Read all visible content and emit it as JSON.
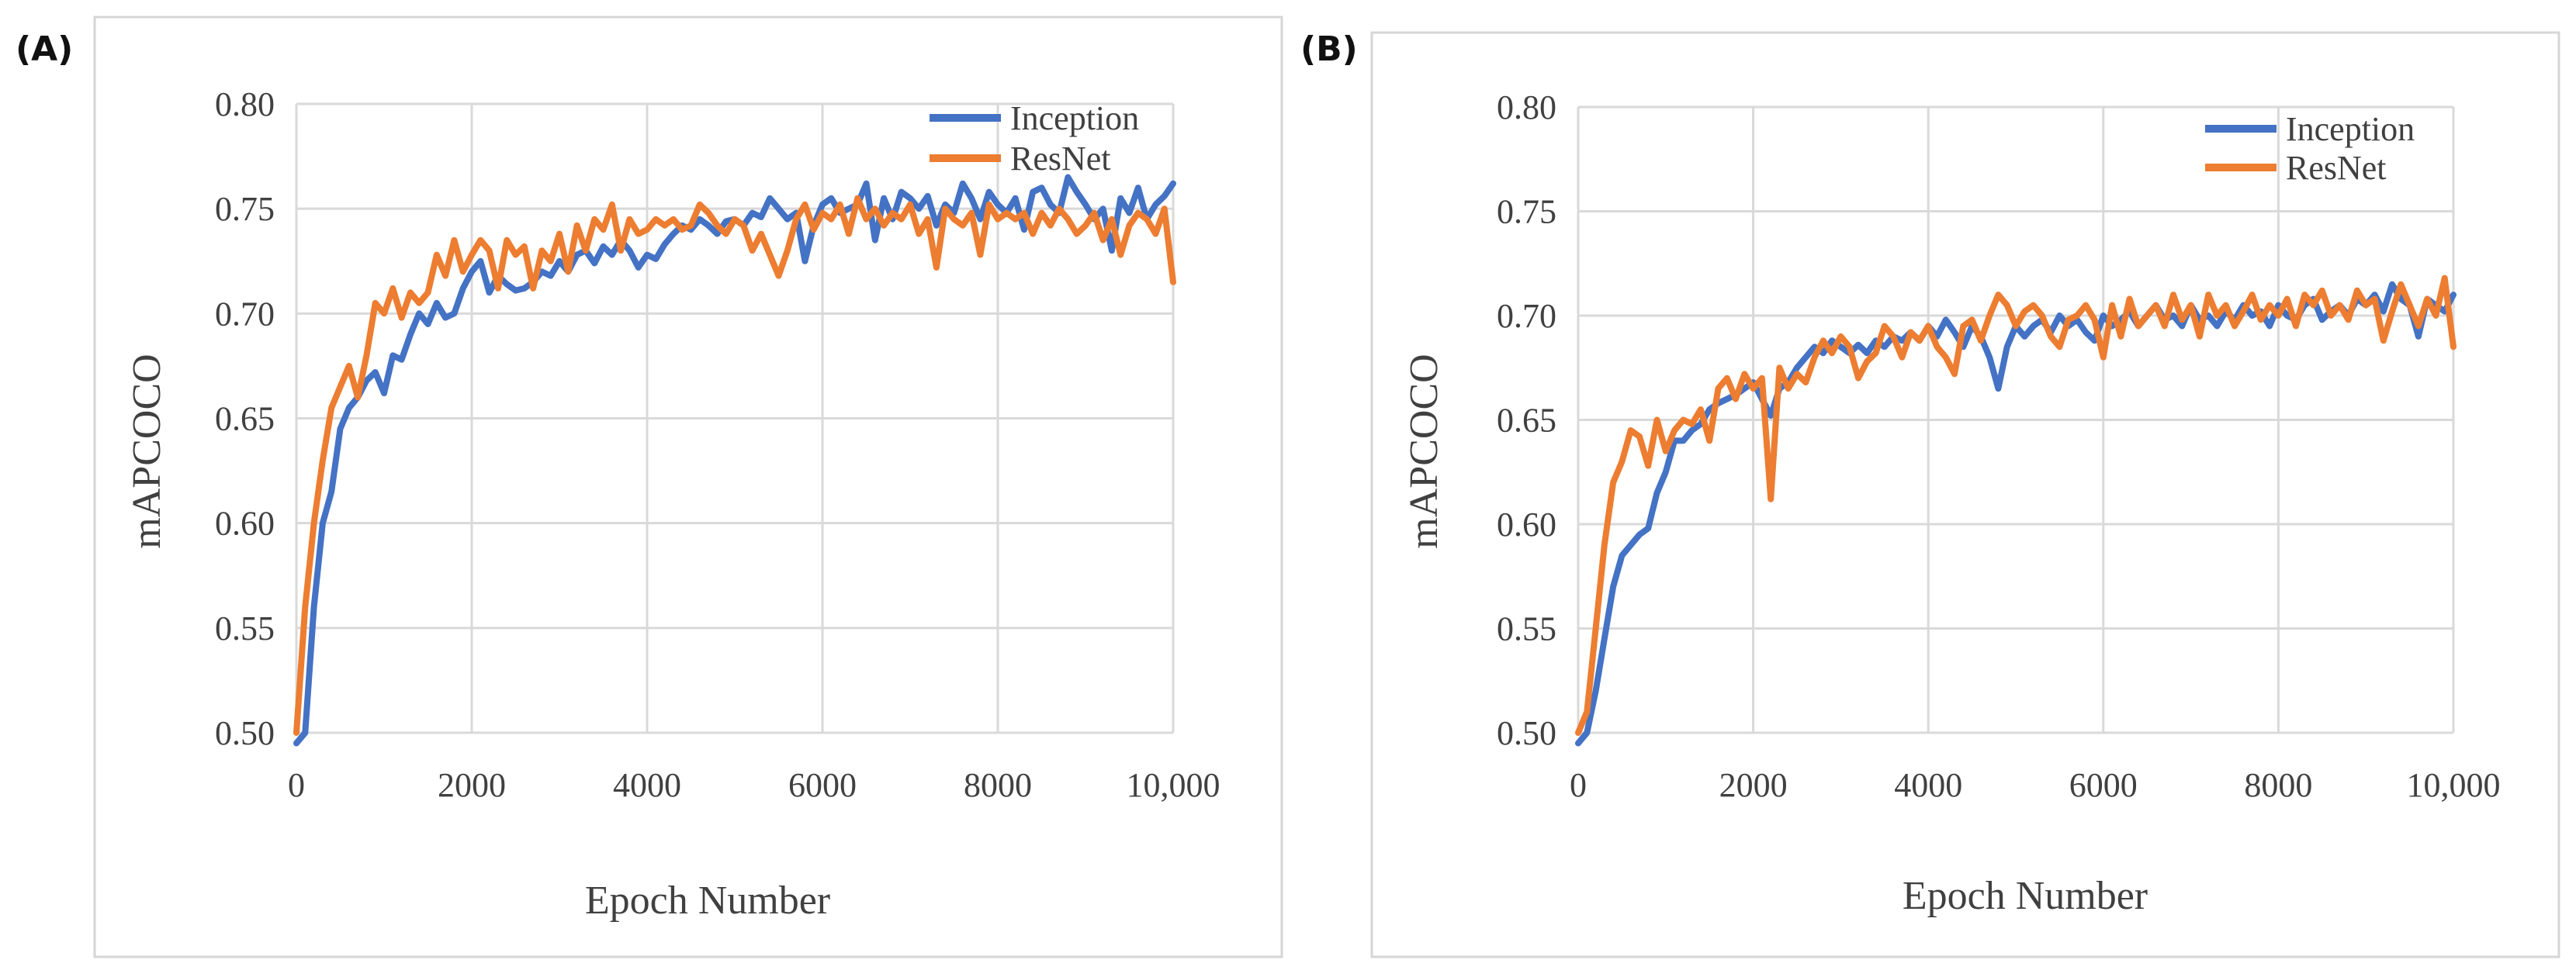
{
  "chart_data": [
    {
      "type": "line",
      "panel_label": "(A)",
      "title": "",
      "xlabel": "Epoch Number",
      "ylabel": "mAPCOCO",
      "xlim": [
        0,
        10000
      ],
      "ylim": [
        0.5,
        0.8
      ],
      "x_ticks": [
        "0",
        "2000",
        "4000",
        "6000",
        "8000",
        "10,000"
      ],
      "y_ticks": [
        "0.50",
        "0.55",
        "0.60",
        "0.65",
        "0.70",
        "0.75",
        "0.80"
      ],
      "grid": true,
      "legend_position": "top-right",
      "series": [
        {
          "name": "Inception",
          "color": "#4472C4",
          "x": [
            0,
            100,
            200,
            300,
            400,
            500,
            600,
            700,
            800,
            900,
            1000,
            1100,
            1200,
            1300,
            1400,
            1500,
            1600,
            1700,
            1800,
            1900,
            2000,
            2100,
            2200,
            2300,
            2400,
            2500,
            2600,
            2700,
            2800,
            2900,
            3000,
            3100,
            3200,
            3300,
            3400,
            3500,
            3600,
            3700,
            3800,
            3900,
            4000,
            4100,
            4200,
            4300,
            4400,
            4500,
            4600,
            4700,
            4800,
            4900,
            5000,
            5100,
            5200,
            5300,
            5400,
            5500,
            5600,
            5700,
            5800,
            5900,
            6000,
            6100,
            6200,
            6300,
            6400,
            6500,
            6600,
            6700,
            6800,
            6900,
            7000,
            7100,
            7200,
            7300,
            7400,
            7500,
            7600,
            7700,
            7800,
            7900,
            8000,
            8100,
            8200,
            8300,
            8400,
            8500,
            8600,
            8700,
            8800,
            8900,
            9000,
            9100,
            9200,
            9300,
            9400,
            9500,
            9600,
            9700,
            9800,
            9900,
            10000
          ],
          "values": [
            0.495,
            0.5,
            0.56,
            0.6,
            0.615,
            0.645,
            0.655,
            0.66,
            0.668,
            0.672,
            0.662,
            0.68,
            0.678,
            0.69,
            0.7,
            0.695,
            0.705,
            0.698,
            0.7,
            0.712,
            0.72,
            0.725,
            0.71,
            0.718,
            0.714,
            0.711,
            0.712,
            0.715,
            0.72,
            0.718,
            0.725,
            0.72,
            0.728,
            0.73,
            0.724,
            0.732,
            0.728,
            0.735,
            0.73,
            0.722,
            0.728,
            0.726,
            0.733,
            0.738,
            0.742,
            0.74,
            0.745,
            0.742,
            0.738,
            0.744,
            0.745,
            0.742,
            0.748,
            0.746,
            0.755,
            0.75,
            0.745,
            0.748,
            0.725,
            0.742,
            0.752,
            0.755,
            0.748,
            0.75,
            0.752,
            0.762,
            0.735,
            0.755,
            0.745,
            0.758,
            0.755,
            0.75,
            0.756,
            0.742,
            0.752,
            0.748,
            0.762,
            0.755,
            0.745,
            0.758,
            0.752,
            0.748,
            0.755,
            0.74,
            0.758,
            0.76,
            0.752,
            0.748,
            0.765,
            0.758,
            0.752,
            0.745,
            0.75,
            0.73,
            0.755,
            0.748,
            0.76,
            0.745,
            0.752,
            0.756,
            0.762
          ]
        },
        {
          "name": "ResNet",
          "color": "#ED7D31",
          "x": [
            0,
            100,
            200,
            300,
            400,
            500,
            600,
            700,
            800,
            900,
            1000,
            1100,
            1200,
            1300,
            1400,
            1500,
            1600,
            1700,
            1800,
            1900,
            2000,
            2100,
            2200,
            2300,
            2400,
            2500,
            2600,
            2700,
            2800,
            2900,
            3000,
            3100,
            3200,
            3300,
            3400,
            3500,
            3600,
            3700,
            3800,
            3900,
            4000,
            4100,
            4200,
            4300,
            4400,
            4500,
            4600,
            4700,
            4800,
            4900,
            5000,
            5100,
            5200,
            5300,
            5400,
            5500,
            5600,
            5700,
            5800,
            5900,
            6000,
            6100,
            6200,
            6300,
            6400,
            6500,
            6600,
            6700,
            6800,
            6900,
            7000,
            7100,
            7200,
            7300,
            7400,
            7500,
            7600,
            7700,
            7800,
            7900,
            8000,
            8100,
            8200,
            8300,
            8400,
            8500,
            8600,
            8700,
            8800,
            8900,
            9000,
            9100,
            9200,
            9300,
            9400,
            9500,
            9600,
            9700,
            9800,
            9900,
            10000
          ],
          "values": [
            0.5,
            0.56,
            0.6,
            0.63,
            0.655,
            0.665,
            0.675,
            0.66,
            0.68,
            0.705,
            0.7,
            0.712,
            0.698,
            0.71,
            0.705,
            0.71,
            0.728,
            0.718,
            0.735,
            0.72,
            0.728,
            0.735,
            0.73,
            0.712,
            0.735,
            0.728,
            0.732,
            0.712,
            0.73,
            0.725,
            0.738,
            0.72,
            0.742,
            0.73,
            0.745,
            0.74,
            0.752,
            0.73,
            0.745,
            0.738,
            0.74,
            0.745,
            0.742,
            0.745,
            0.74,
            0.742,
            0.752,
            0.748,
            0.742,
            0.738,
            0.745,
            0.742,
            0.73,
            0.738,
            0.728,
            0.718,
            0.73,
            0.745,
            0.752,
            0.74,
            0.748,
            0.745,
            0.752,
            0.738,
            0.755,
            0.745,
            0.75,
            0.742,
            0.748,
            0.745,
            0.752,
            0.738,
            0.745,
            0.722,
            0.75,
            0.745,
            0.742,
            0.748,
            0.728,
            0.752,
            0.745,
            0.748,
            0.745,
            0.748,
            0.738,
            0.748,
            0.742,
            0.75,
            0.745,
            0.738,
            0.742,
            0.748,
            0.735,
            0.745,
            0.728,
            0.742,
            0.748,
            0.745,
            0.738,
            0.75,
            0.715
          ]
        }
      ]
    },
    {
      "type": "line",
      "panel_label": "(B)",
      "title": "",
      "xlabel": "Epoch Number",
      "ylabel": "mAPCOCO",
      "xlim": [
        0,
        10000
      ],
      "ylim": [
        0.5,
        0.8
      ],
      "x_ticks": [
        "0",
        "2000",
        "4000",
        "6000",
        "8000",
        "10,000"
      ],
      "y_ticks": [
        "0.50",
        "0.55",
        "0.60",
        "0.65",
        "0.70",
        "0.75",
        "0.80"
      ],
      "grid": true,
      "legend_position": "top-right",
      "series": [
        {
          "name": "Inception",
          "color": "#4472C4",
          "x": [
            0,
            100,
            200,
            300,
            400,
            500,
            600,
            700,
            800,
            900,
            1000,
            1100,
            1200,
            1300,
            1400,
            1500,
            1600,
            1700,
            1800,
            1900,
            2000,
            2100,
            2200,
            2300,
            2400,
            2500,
            2600,
            2700,
            2800,
            2900,
            3000,
            3100,
            3200,
            3300,
            3400,
            3500,
            3600,
            3700,
            3800,
            3900,
            4000,
            4100,
            4200,
            4300,
            4400,
            4500,
            4600,
            4700,
            4800,
            4900,
            5000,
            5100,
            5200,
            5300,
            5400,
            5500,
            5600,
            5700,
            5800,
            5900,
            6000,
            6100,
            6200,
            6300,
            6400,
            6500,
            6600,
            6700,
            6800,
            6900,
            7000,
            7100,
            7200,
            7300,
            7400,
            7500,
            7600,
            7700,
            7800,
            7900,
            8000,
            8100,
            8200,
            8300,
            8400,
            8500,
            8600,
            8700,
            8800,
            8900,
            9000,
            9100,
            9200,
            9300,
            9400,
            9500,
            9600,
            9700,
            9800,
            9900,
            10000
          ],
          "values": [
            0.495,
            0.5,
            0.52,
            0.545,
            0.57,
            0.585,
            0.59,
            0.595,
            0.598,
            0.615,
            0.625,
            0.64,
            0.64,
            0.645,
            0.648,
            0.655,
            0.658,
            0.66,
            0.662,
            0.665,
            0.668,
            0.66,
            0.652,
            0.665,
            0.668,
            0.675,
            0.68,
            0.685,
            0.682,
            0.688,
            0.685,
            0.682,
            0.686,
            0.682,
            0.688,
            0.685,
            0.69,
            0.688,
            0.692,
            0.688,
            0.695,
            0.69,
            0.698,
            0.692,
            0.685,
            0.695,
            0.69,
            0.68,
            0.665,
            0.685,
            0.695,
            0.69,
            0.695,
            0.698,
            0.692,
            0.7,
            0.695,
            0.698,
            0.692,
            0.688,
            0.7,
            0.695,
            0.698,
            0.702,
            0.695,
            0.7,
            0.705,
            0.698,
            0.7,
            0.695,
            0.705,
            0.698,
            0.7,
            0.695,
            0.702,
            0.698,
            0.705,
            0.7,
            0.702,
            0.695,
            0.705,
            0.7,
            0.698,
            0.705,
            0.708,
            0.698,
            0.702,
            0.705,
            0.7,
            0.708,
            0.705,
            0.71,
            0.702,
            0.715,
            0.708,
            0.705,
            0.69,
            0.708,
            0.705,
            0.702,
            0.71
          ]
        },
        {
          "name": "ResNet",
          "color": "#ED7D31",
          "x": [
            0,
            100,
            200,
            300,
            400,
            500,
            600,
            700,
            800,
            900,
            1000,
            1100,
            1200,
            1300,
            1400,
            1500,
            1600,
            1700,
            1800,
            1900,
            2000,
            2100,
            2200,
            2300,
            2400,
            2500,
            2600,
            2700,
            2800,
            2900,
            3000,
            3100,
            3200,
            3300,
            3400,
            3500,
            3600,
            3700,
            3800,
            3900,
            4000,
            4100,
            4200,
            4300,
            4400,
            4500,
            4600,
            4700,
            4800,
            4900,
            5000,
            5100,
            5200,
            5300,
            5400,
            5500,
            5600,
            5700,
            5800,
            5900,
            6000,
            6100,
            6200,
            6300,
            6400,
            6500,
            6600,
            6700,
            6800,
            6900,
            7000,
            7100,
            7200,
            7300,
            7400,
            7500,
            7600,
            7700,
            7800,
            7900,
            8000,
            8100,
            8200,
            8300,
            8400,
            8500,
            8600,
            8700,
            8800,
            8900,
            9000,
            9100,
            9200,
            9300,
            9400,
            9500,
            9600,
            9700,
            9800,
            9900,
            10000
          ],
          "values": [
            0.5,
            0.51,
            0.55,
            0.59,
            0.62,
            0.63,
            0.645,
            0.642,
            0.628,
            0.65,
            0.635,
            0.645,
            0.65,
            0.648,
            0.655,
            0.64,
            0.665,
            0.67,
            0.66,
            0.672,
            0.665,
            0.67,
            0.612,
            0.675,
            0.665,
            0.672,
            0.668,
            0.68,
            0.688,
            0.682,
            0.69,
            0.685,
            0.67,
            0.678,
            0.682,
            0.695,
            0.69,
            0.68,
            0.692,
            0.688,
            0.695,
            0.685,
            0.68,
            0.672,
            0.695,
            0.698,
            0.688,
            0.7,
            0.71,
            0.705,
            0.695,
            0.702,
            0.705,
            0.7,
            0.69,
            0.685,
            0.698,
            0.7,
            0.705,
            0.698,
            0.68,
            0.705,
            0.69,
            0.708,
            0.695,
            0.7,
            0.705,
            0.695,
            0.71,
            0.698,
            0.705,
            0.69,
            0.71,
            0.7,
            0.705,
            0.695,
            0.702,
            0.71,
            0.698,
            0.705,
            0.7,
            0.708,
            0.695,
            0.71,
            0.705,
            0.712,
            0.7,
            0.705,
            0.698,
            0.712,
            0.705,
            0.708,
            0.688,
            0.702,
            0.715,
            0.705,
            0.695,
            0.708,
            0.7,
            0.718,
            0.685
          ]
        }
      ]
    }
  ]
}
